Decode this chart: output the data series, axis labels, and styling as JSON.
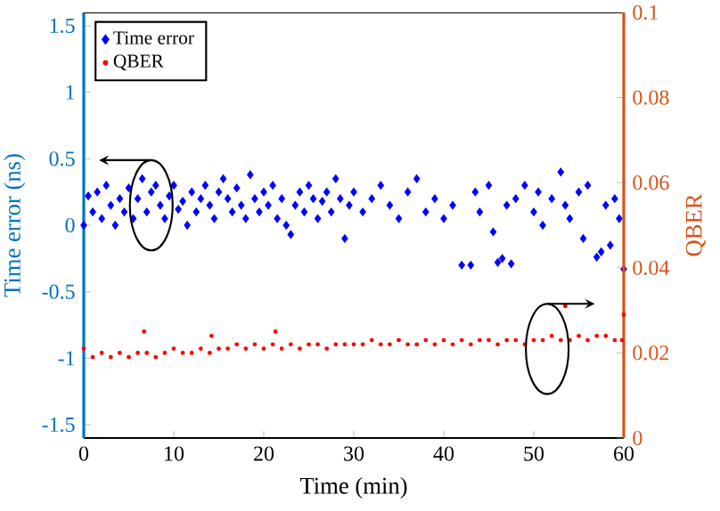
{
  "chart_data": {
    "type": "scatter",
    "xlabel": "Time (min)",
    "ylabel": "Time error (ns)",
    "y2label": "QBER",
    "xlim": [
      0,
      60
    ],
    "xticks": [
      0,
      10,
      20,
      30,
      40,
      50,
      60
    ],
    "ylim": [
      -1.6,
      1.6
    ],
    "yticks": [
      -1.5,
      -1,
      -0.5,
      0,
      0.5,
      1,
      1.5
    ],
    "y2lim": [
      0,
      0.1
    ],
    "y2ticks": [
      0,
      0.02,
      0.04,
      0.06,
      0.08,
      0.1
    ],
    "legend": "top left",
    "grid": false,
    "series": [
      {
        "name": "Time error",
        "color": "#0000ff",
        "marker": "diamond",
        "x": [
          0,
          0.5,
          1,
          1.5,
          2,
          2.5,
          3,
          3.5,
          4,
          4.5,
          5,
          5.5,
          6,
          6.5,
          7,
          7.5,
          8,
          8.5,
          9,
          9.5,
          10,
          10.5,
          11,
          11.5,
          12,
          12.5,
          13,
          13.5,
          14,
          14.5,
          15,
          15.5,
          16,
          16.5,
          17,
          17.5,
          18,
          18.5,
          19,
          19.5,
          20,
          20.5,
          21,
          21.5,
          22,
          22.5,
          23,
          23.5,
          24,
          24.5,
          25,
          25.5,
          26,
          26.5,
          27,
          27.5,
          28,
          28.5,
          29,
          29.5,
          30,
          31,
          32,
          33,
          34,
          35,
          36,
          37,
          38,
          39,
          40,
          41,
          42,
          43,
          43.5,
          44,
          45,
          45.5,
          46,
          46.5,
          47,
          47.5,
          48,
          49,
          50,
          50.5,
          51,
          52,
          53,
          53.5,
          54,
          55,
          55.5,
          56,
          57,
          57.5,
          58,
          58.5,
          59,
          59.5,
          60
        ],
        "values": [
          0.0,
          0.22,
          0.1,
          0.25,
          0.05,
          0.3,
          0.15,
          0.0,
          0.2,
          0.1,
          0.28,
          0.05,
          0.2,
          0.35,
          0.1,
          0.25,
          0.3,
          0.15,
          0.05,
          0.22,
          0.3,
          0.12,
          0.18,
          0.0,
          0.25,
          0.1,
          0.2,
          0.3,
          0.15,
          0.05,
          0.25,
          0.35,
          0.2,
          0.1,
          0.28,
          0.15,
          0.05,
          0.38,
          0.2,
          0.1,
          0.25,
          0.15,
          0.3,
          0.05,
          0.2,
          0.0,
          -0.07,
          0.15,
          0.25,
          0.1,
          0.3,
          0.2,
          0.05,
          0.18,
          0.25,
          0.1,
          0.35,
          0.2,
          -0.1,
          0.15,
          0.25,
          0.1,
          0.2,
          0.3,
          0.15,
          0.05,
          0.25,
          0.35,
          0.1,
          0.2,
          0.05,
          0.15,
          -0.3,
          -0.3,
          0.25,
          0.1,
          0.3,
          -0.05,
          -0.28,
          -0.25,
          0.15,
          -0.29,
          0.2,
          0.3,
          0.1,
          0.25,
          0.0,
          0.2,
          0.4,
          0.15,
          0.05,
          0.25,
          -0.1,
          0.3,
          -0.24,
          -0.2,
          0.15,
          -0.15,
          0.2,
          0.05,
          -0.33
        ]
      },
      {
        "name": "QBER",
        "color": "#ff0000",
        "marker": "circle",
        "axis": "y2",
        "x": [
          0,
          1,
          2,
          3,
          4,
          5,
          6,
          6.7,
          7,
          8,
          9,
          10,
          11,
          12,
          13,
          14,
          14.2,
          15,
          16,
          17,
          18,
          19,
          20,
          21,
          21.3,
          22,
          23,
          24,
          25,
          26,
          27,
          28,
          29,
          30,
          31,
          32,
          33,
          34,
          35,
          36,
          37,
          38,
          39,
          40,
          41,
          42,
          43,
          44,
          45,
          46,
          47,
          48,
          49,
          50,
          51,
          52,
          53,
          53.5,
          54,
          55,
          56,
          57,
          58,
          59,
          59.8,
          60
        ],
        "values": [
          0.021,
          0.019,
          0.02,
          0.019,
          0.02,
          0.019,
          0.02,
          0.025,
          0.02,
          0.019,
          0.02,
          0.021,
          0.02,
          0.02,
          0.021,
          0.02,
          0.024,
          0.021,
          0.021,
          0.022,
          0.021,
          0.022,
          0.021,
          0.022,
          0.025,
          0.021,
          0.022,
          0.021,
          0.022,
          0.022,
          0.021,
          0.022,
          0.022,
          0.022,
          0.022,
          0.023,
          0.022,
          0.022,
          0.023,
          0.022,
          0.022,
          0.023,
          0.022,
          0.023,
          0.022,
          0.023,
          0.022,
          0.023,
          0.023,
          0.022,
          0.023,
          0.023,
          0.022,
          0.023,
          0.023,
          0.024,
          0.023,
          0.031,
          0.023,
          0.024,
          0.023,
          0.024,
          0.024,
          0.023,
          0.023,
          0.029
        ]
      }
    ]
  }
}
